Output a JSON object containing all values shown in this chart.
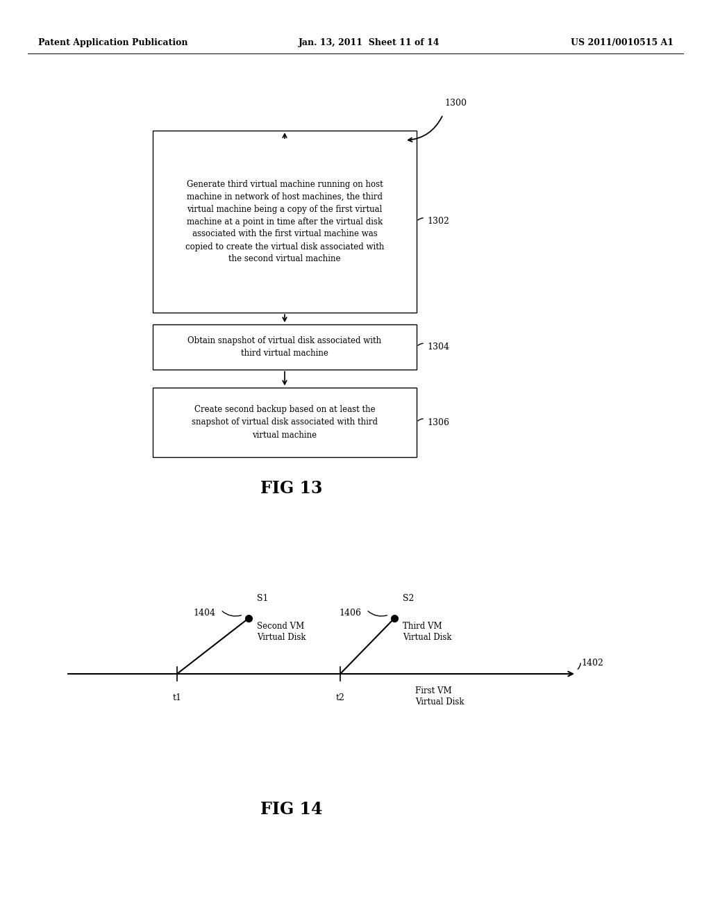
{
  "bg_color": "#ffffff",
  "header_left": "Patent Application Publication",
  "header_center": "Jan. 13, 2011  Sheet 11 of 14",
  "header_right": "US 2011/0010515 A1",
  "header_fontsize": 9,
  "fig13_label": "FIG 13",
  "fig14_label": "FIG 14",
  "box1_text": "Generate third virtual machine running on host\nmachine in network of host machines, the third\nvirtual machine being a copy of the first virtual\nmachine at a point in time after the virtual disk\nassociated with the first virtual machine was\ncopied to create the virtual disk associated with\nthe second virtual machine",
  "box1_label": "1302",
  "box2_text": "Obtain snapshot of virtual disk associated with\nthird virtual machine",
  "box2_label": "1304",
  "box3_text": "Create second backup based on at least the\nsnapshot of virtual disk associated with third\nvirtual machine",
  "box3_label": "1306",
  "entry_label": "1300",
  "fig14_arrow_label": "1402",
  "fig14_s1_label": "1404",
  "fig14_s2_label": "1406",
  "fig14_s1_text": "S1",
  "fig14_s2_text": "S2",
  "fig14_vm1_text": "Second VM\nVirtual Disk",
  "fig14_vm2_text": "Third VM\nVirtual Disk",
  "fig14_axis_text": "First VM\nVirtual Disk",
  "fig14_t1": "t1",
  "fig14_t2": "t2",
  "text_color": "#000000",
  "box_edge_color": "#000000",
  "line_color": "#000000"
}
